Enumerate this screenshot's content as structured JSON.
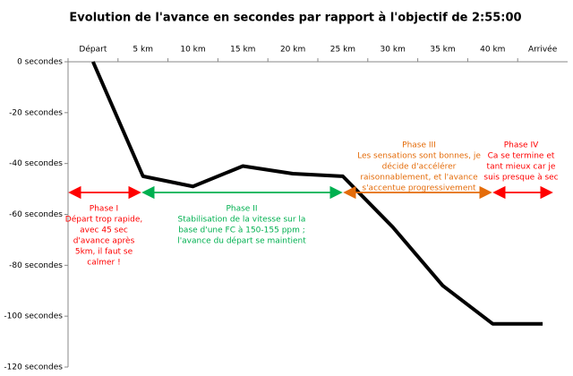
{
  "chart_data": {
    "type": "line",
    "title": "Evolution de l'avance en secondes par rapport à l'objectif de 2:55:00",
    "categories": [
      "Départ",
      "5 km",
      "10 km",
      "15 km",
      "20 km",
      "25 km",
      "30 km",
      "35 km",
      "40 km",
      "Arrivée"
    ],
    "series": [
      {
        "color": "#000000",
        "values": [
          0,
          -45,
          -49,
          -41,
          -44,
          -45,
          -65,
          -88,
          -103,
          -103
        ]
      }
    ],
    "ylim": [
      -120,
      0
    ],
    "yticks": [
      {
        "value": 0,
        "label": "0 secondes"
      },
      {
        "value": -20,
        "label": "-20 secondes"
      },
      {
        "value": -40,
        "label": "-40 secondes"
      },
      {
        "value": -60,
        "label": "-60 secondes"
      },
      {
        "value": -80,
        "label": "-80 secondes"
      },
      {
        "value": -100,
        "label": "-100 secondes"
      },
      {
        "value": -120,
        "label": "-120 secondes"
      }
    ],
    "grid": false,
    "annotations": [
      {
        "color": "#ff0000",
        "lines": [
          "Phase I",
          "Départ trop rapide,",
          "avec 45 sec",
          "d'avance après",
          "5km, il faut se",
          "calmer !"
        ]
      },
      {
        "color": "#00b050",
        "lines": [
          "Phase II",
          "Stabilisation de la vitesse sur la",
          "base d'une FC à 150-155 ppm ;",
          "l'avance du départ se maintient"
        ]
      },
      {
        "color": "#e46c0a",
        "lines": [
          "Phase III",
          "Les sensations sont bonnes, je",
          "décide d'accélérer",
          "raisonnablement, et l'avance",
          "s'accentue progressivement"
        ]
      },
      {
        "color": "#ff0000",
        "lines": [
          "Phase IV",
          "Ca se termine et",
          "tant mieux car je",
          "suis presque à sec"
        ]
      }
    ]
  }
}
